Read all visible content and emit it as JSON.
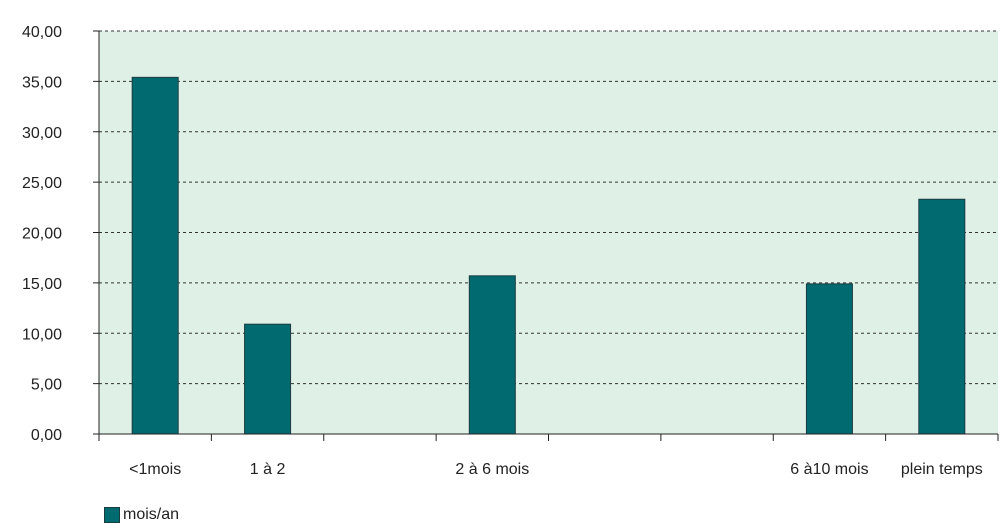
{
  "chart_data": {
    "type": "bar",
    "categories": [
      "<1mois",
      "1 à 2",
      "",
      "2 à 6 mois",
      "",
      "",
      "6 à10 mois",
      "plein temps"
    ],
    "series": [
      {
        "name": "mois/an",
        "values": [
          35.4,
          10.9,
          null,
          15.7,
          null,
          null,
          14.9,
          23.3
        ]
      }
    ],
    "y_ticks": [
      "0,00",
      "5,00",
      "10,00",
      "15,00",
      "20,00",
      "25,00",
      "30,00",
      "35,00",
      "40,00"
    ],
    "ylim": [
      0,
      40
    ],
    "grid": true,
    "legend_position": "bottom-left"
  },
  "colors": {
    "bar": "#006a71",
    "bar_border": "#1a3d40",
    "plot_background": "#dff0e6",
    "grid": "#333333",
    "axis": "#222222"
  }
}
